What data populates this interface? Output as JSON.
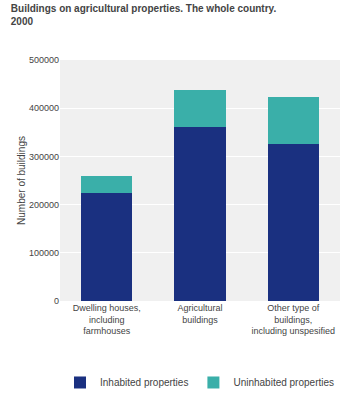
{
  "chart_data": {
    "type": "bar",
    "stacked": true,
    "title": "Buildings on agricultural properties. The whole country.",
    "subtitle": "2000",
    "ylabel": "Number of buildings",
    "categories": [
      "Dwelling houses,\nincluding\nfarmhouses",
      "Agricultural\nbuildings",
      "Other type of\nbuildings,\nincluding unspesified"
    ],
    "series": [
      {
        "name": "Inhabited properties",
        "color": "#1a3080",
        "values": [
          225000,
          362000,
          325000
        ]
      },
      {
        "name": "Uninhabited properties",
        "color": "#3aafa9",
        "values": [
          35000,
          75000,
          98000
        ]
      }
    ],
    "ylim": [
      0,
      500000
    ],
    "yticks": [
      0,
      100000,
      200000,
      300000,
      400000,
      500000
    ],
    "grid": true,
    "legend": "bottom"
  }
}
